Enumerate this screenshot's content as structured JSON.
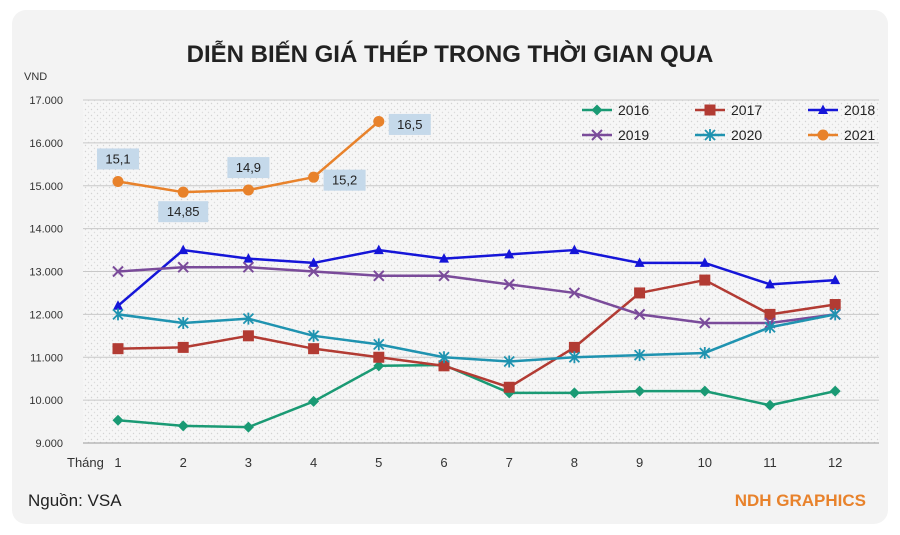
{
  "chart_data": {
    "type": "line",
    "title": "DIỄN BIẾN GIÁ THÉP TRONG THỜI GIAN QUA",
    "ylabel": "VND",
    "xlabel": "Tháng",
    "categories": [
      "1",
      "2",
      "3",
      "4",
      "5",
      "6",
      "7",
      "8",
      "9",
      "10",
      "11",
      "12"
    ],
    "ylim": [
      9000,
      17000
    ],
    "yticks": [
      9000,
      10000,
      11000,
      12000,
      13000,
      14000,
      15000,
      16000,
      17000
    ],
    "ytick_labels": [
      "9.000",
      "10.000",
      "11.000",
      "12.000",
      "13.000",
      "14.000",
      "15.000",
      "16.000",
      "17.000"
    ],
    "grid": true,
    "legend_position": "top-right",
    "series": [
      {
        "name": "2016",
        "color": "#1a9a74",
        "marker": "diamond",
        "values": [
          9530,
          9400,
          9370,
          9970,
          10800,
          10820,
          10170,
          10170,
          10210,
          10210,
          9880,
          10210
        ]
      },
      {
        "name": "2017",
        "color": "#b23b33",
        "marker": "square",
        "values": [
          11200,
          11230,
          11500,
          11200,
          11000,
          10800,
          10300,
          11230,
          12500,
          12800,
          12000,
          12230
        ]
      },
      {
        "name": "2018",
        "color": "#1515d8",
        "marker": "triangle",
        "values": [
          12200,
          13500,
          13300,
          13200,
          13500,
          13300,
          13400,
          13500,
          13200,
          13200,
          12700,
          12800
        ]
      },
      {
        "name": "2019",
        "color": "#7a4b9a",
        "marker": "x",
        "values": [
          13000,
          13100,
          13100,
          13000,
          12900,
          12900,
          12700,
          12500,
          12000,
          11800,
          11800,
          12000
        ]
      },
      {
        "name": "2020",
        "color": "#1f93b0",
        "marker": "star",
        "values": [
          12000,
          11800,
          11900,
          11500,
          11300,
          11000,
          10900,
          11000,
          11050,
          11100,
          11700,
          12000
        ]
      },
      {
        "name": "2021",
        "color": "#e8822b",
        "marker": "circle",
        "values": [
          15100,
          14850,
          14900,
          15200,
          16500,
          null,
          null,
          null,
          null,
          null,
          null,
          null
        ]
      }
    ],
    "annotations": [
      {
        "series": "2021",
        "index": 0,
        "text": "15,1",
        "placement": "above"
      },
      {
        "series": "2021",
        "index": 1,
        "text": "14,85",
        "placement": "below"
      },
      {
        "series": "2021",
        "index": 2,
        "text": "14,9",
        "placement": "above"
      },
      {
        "series": "2021",
        "index": 3,
        "text": "15,2",
        "placement": "right"
      },
      {
        "series": "2021",
        "index": 4,
        "text": "16,5",
        "placement": "right"
      }
    ]
  },
  "footer": {
    "source": "Nguồn: VSA",
    "credit": "NDH GRAPHICS",
    "credit_color": "#e8822b"
  }
}
